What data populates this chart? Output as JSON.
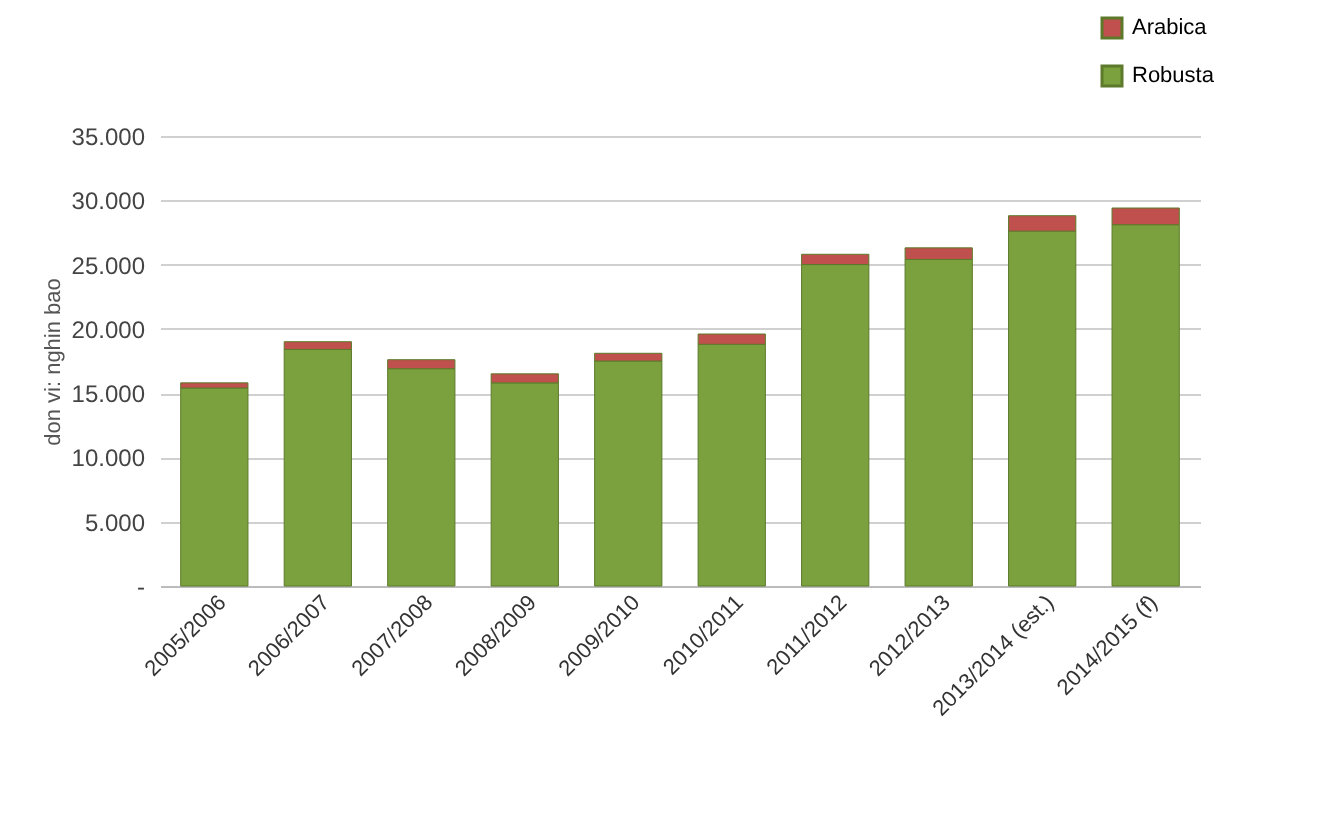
{
  "chart_data": {
    "type": "bar",
    "stacked": true,
    "ylabel": "don vi: nghin bao",
    "categories": [
      "2005/2006",
      "2006/2007",
      "2007/2008",
      "2008/2009",
      "2009/2010",
      "2010/2011",
      "2011/2012",
      "2012/2013",
      "2013/2014 (est.)",
      "2014/2015 (f)"
    ],
    "series": [
      {
        "name": "Robusta",
        "color": "#7ba13e",
        "values": [
          15400,
          18400,
          16900,
          15800,
          17500,
          18800,
          25000,
          25400,
          27600,
          28100
        ]
      },
      {
        "name": "Arabica",
        "color": "#c0504d",
        "values": [
          400,
          600,
          700,
          700,
          600,
          800,
          800,
          900,
          1200,
          1300
        ]
      }
    ],
    "ylim": [
      0,
      35000
    ],
    "yticks": [
      {
        "value": 0,
        "label": "-"
      },
      {
        "value": 5000,
        "label": "5.000"
      },
      {
        "value": 10000,
        "label": "10.000"
      },
      {
        "value": 15000,
        "label": "15.000"
      },
      {
        "value": 20000,
        "label": "20.000"
      },
      {
        "value": 25000,
        "label": "25.000"
      },
      {
        "value": 30000,
        "label": "30.000"
      },
      {
        "value": 35000,
        "label": "35.000"
      }
    ],
    "grid": "y",
    "legend": "top right"
  }
}
